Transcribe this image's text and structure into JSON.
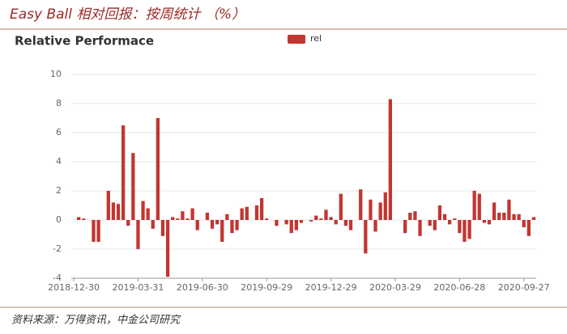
{
  "header": {
    "title": "Easy Ball 相对回报：按周统计 （%）"
  },
  "chart_data": {
    "type": "bar",
    "title": "Relative Performace",
    "categories": [
      "2018-12-30",
      null,
      null,
      null,
      null,
      null,
      null,
      null,
      null,
      null,
      null,
      null,
      null,
      "2019-03-31",
      null,
      null,
      null,
      null,
      null,
      null,
      null,
      null,
      null,
      null,
      null,
      null,
      "2019-06-30",
      null,
      null,
      null,
      null,
      null,
      null,
      null,
      null,
      null,
      null,
      null,
      null,
      "2019-09-29",
      null,
      null,
      null,
      null,
      null,
      null,
      null,
      null,
      null,
      null,
      null,
      null,
      "2019-12-29",
      null,
      null,
      null,
      null,
      null,
      null,
      null,
      null,
      null,
      null,
      null,
      null,
      "2020-03-29",
      null,
      null,
      null,
      null,
      null,
      null,
      null,
      null,
      null,
      null,
      null,
      null,
      "2020-06-28",
      null,
      null,
      null,
      null,
      null,
      null,
      null,
      null,
      null,
      null,
      null,
      null,
      "2020-09-27",
      null,
      null
    ],
    "series": [
      {
        "name": "rel",
        "color": "#c23531",
        "values": [
          0,
          0.2,
          0.1,
          0,
          -1.5,
          -1.5,
          0,
          2.0,
          1.2,
          1.1,
          6.5,
          -0.4,
          4.6,
          -2.0,
          1.3,
          0.8,
          -0.6,
          7.0,
          -1.1,
          -3.9,
          0.2,
          0.1,
          0.6,
          0.1,
          0.8,
          -0.7,
          0,
          0.5,
          -0.6,
          -0.3,
          -1.5,
          0.4,
          -0.9,
          -0.7,
          0.8,
          0.9,
          0,
          1.0,
          1.5,
          0.1,
          0,
          -0.4,
          0,
          -0.3,
          -0.9,
          -0.7,
          -0.2,
          0,
          -0.1,
          0.3,
          0.1,
          0.7,
          0.2,
          -0.3,
          1.8,
          -0.4,
          -0.7,
          0,
          2.1,
          -2.3,
          1.4,
          -0.8,
          1.2,
          1.9,
          8.3,
          0,
          0,
          -0.9,
          0.5,
          0.6,
          -1.1,
          0,
          -0.4,
          -0.7,
          1.0,
          0.4,
          -0.3,
          0.1,
          -0.9,
          -1.5,
          -1.3,
          2.0,
          1.8,
          -0.2,
          -0.3,
          1.2,
          0.5,
          0.5,
          1.4,
          0.4,
          0.4,
          -0.5,
          -1.1,
          0.2
        ]
      }
    ],
    "ylim": [
      -4,
      10
    ],
    "yticks": [
      -4,
      -2,
      0,
      2,
      4,
      6,
      8,
      10
    ],
    "grid": true,
    "legend": "top"
  },
  "footer": {
    "source": "资料来源：万得资讯，中金公司研究"
  }
}
